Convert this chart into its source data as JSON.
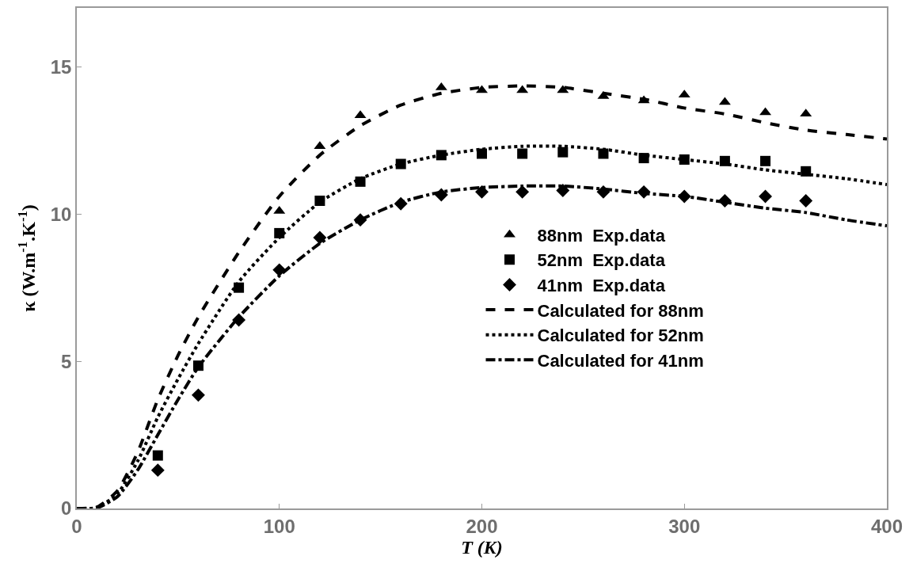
{
  "chart_data": {
    "type": "scatter",
    "xlabel": "T (K)",
    "ylabel": "κ (W.m$^{-1}$.K$^{-1}$)",
    "xlim": [
      0,
      400
    ],
    "xticks": [
      0,
      100,
      200,
      300,
      400
    ],
    "ylim": [
      0,
      17
    ],
    "yticks": [
      0,
      5,
      10,
      15
    ],
    "legend": "right",
    "series": [
      {
        "name": "88nm  Exp.data",
        "marker": "triangle",
        "color": "#000000",
        "x": [
          100,
          120,
          140,
          180,
          200,
          220,
          240,
          260,
          280,
          300,
          320,
          340,
          360
        ],
        "values": [
          10.1,
          12.3,
          13.35,
          14.3,
          14.2,
          14.2,
          14.2,
          14.0,
          13.85,
          14.05,
          13.8,
          13.45,
          13.4
        ]
      },
      {
        "name": "52nm  Exp.data",
        "marker": "square",
        "color": "#000000",
        "x": [
          40,
          60,
          80,
          100,
          120,
          140,
          160,
          180,
          200,
          220,
          240,
          260,
          280,
          300,
          320,
          340,
          360
        ],
        "values": [
          1.8,
          4.85,
          7.5,
          9.35,
          10.45,
          11.1,
          11.7,
          12.0,
          12.05,
          12.05,
          12.1,
          12.05,
          11.9,
          11.85,
          11.8,
          11.8,
          11.45
        ]
      },
      {
        "name": "41nm  Exp.data",
        "marker": "diamond",
        "color": "#000000",
        "x": [
          40,
          60,
          80,
          100,
          120,
          140,
          160,
          180,
          200,
          220,
          240,
          260,
          280,
          300,
          320,
          340,
          360
        ],
        "values": [
          1.3,
          3.85,
          6.4,
          8.1,
          9.2,
          9.8,
          10.35,
          10.65,
          10.75,
          10.75,
          10.8,
          10.75,
          10.75,
          10.6,
          10.45,
          10.6,
          10.45
        ]
      },
      {
        "name": "Calculated for 88nm",
        "type": "line",
        "line_style": "dashed",
        "color": "#000000",
        "x": [
          0,
          10,
          20,
          30,
          40,
          50,
          60,
          80,
          100,
          120,
          140,
          160,
          180,
          200,
          220,
          240,
          260,
          280,
          300,
          320,
          340,
          360,
          380,
          400
        ],
        "values": [
          0,
          0.05,
          0.6,
          1.9,
          3.7,
          5.2,
          6.5,
          8.7,
          10.6,
          12.0,
          13.0,
          13.7,
          14.1,
          14.3,
          14.35,
          14.3,
          14.1,
          13.9,
          13.6,
          13.4,
          13.1,
          12.85,
          12.7,
          12.55
        ]
      },
      {
        "name": "Calculated for 52nm",
        "type": "line",
        "line_style": "dotted",
        "color": "#000000",
        "x": [
          0,
          10,
          20,
          30,
          40,
          50,
          60,
          80,
          100,
          120,
          140,
          160,
          180,
          200,
          220,
          240,
          260,
          280,
          300,
          320,
          340,
          360,
          380,
          400
        ],
        "values": [
          0,
          0.03,
          0.5,
          1.6,
          3.1,
          4.4,
          5.6,
          7.7,
          9.2,
          10.4,
          11.2,
          11.7,
          12.0,
          12.2,
          12.3,
          12.3,
          12.2,
          12.0,
          11.85,
          11.7,
          11.5,
          11.35,
          11.2,
          11.0
        ]
      },
      {
        "name": "Calculated for 41nm",
        "type": "line",
        "line_style": "dashdot",
        "color": "#000000",
        "x": [
          0,
          10,
          20,
          30,
          40,
          50,
          60,
          80,
          100,
          120,
          140,
          160,
          180,
          200,
          220,
          240,
          260,
          280,
          300,
          320,
          340,
          360,
          380,
          400
        ],
        "values": [
          0,
          0.02,
          0.4,
          1.3,
          2.5,
          3.7,
          4.8,
          6.5,
          7.9,
          9.0,
          9.8,
          10.4,
          10.75,
          10.9,
          10.95,
          10.95,
          10.85,
          10.7,
          10.6,
          10.4,
          10.2,
          10.05,
          9.8,
          9.6
        ]
      }
    ]
  }
}
